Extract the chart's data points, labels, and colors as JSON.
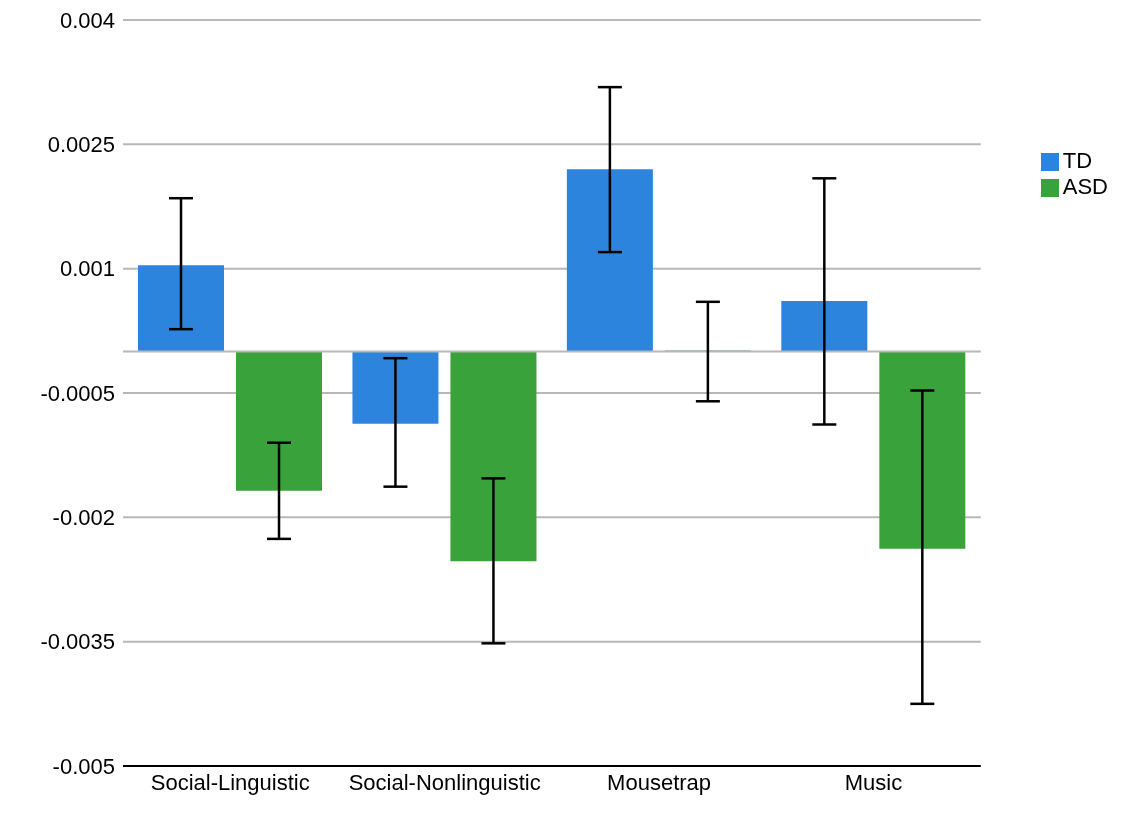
{
  "chart_data": {
    "type": "bar",
    "categories": [
      "Social-Linguistic",
      "Social-Nonlinguistic",
      "Mousetrap",
      "Music"
    ],
    "series": [
      {
        "name": "TD",
        "color": "#2d84dc",
        "values": [
          0.00104,
          -0.00087,
          0.0022,
          0.00061
        ],
        "errors": [
          [
            0.00027,
            0.00185
          ],
          [
            -0.00163,
            -8e-05
          ],
          [
            0.0012,
            0.00319
          ],
          [
            -0.00088,
            0.00209
          ]
        ]
      },
      {
        "name": "ASD",
        "color": "#3aa23b",
        "values": [
          -0.00168,
          -0.00253,
          0,
          -0.00238
        ],
        "errors": [
          [
            -0.00226,
            -0.0011
          ],
          [
            -0.00352,
            -0.00153
          ],
          [
            -0.0006,
            0.0006
          ],
          [
            -0.00425,
            -0.00047
          ]
        ]
      }
    ],
    "ylim": [
      -0.005,
      0.004
    ],
    "yticks": [
      -0.005,
      -0.0035,
      -0.002,
      -0.0005,
      0.001,
      0.0025,
      0.004
    ],
    "ref_lines": [
      {
        "axis": "y",
        "value": 0,
        "color": "#b8b8b8"
      }
    ],
    "grid": "y",
    "legend": "top right"
  }
}
